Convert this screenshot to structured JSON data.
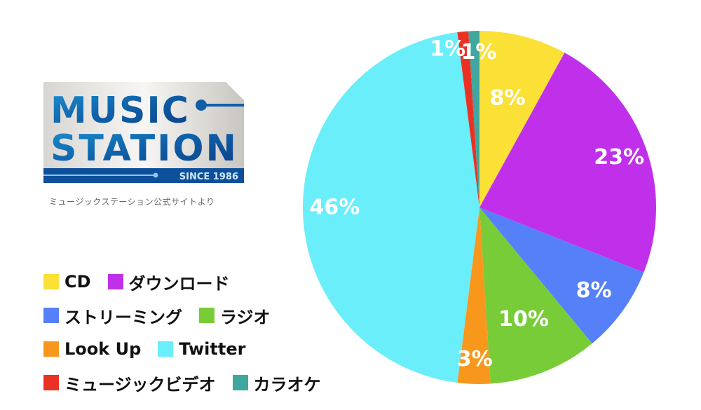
{
  "logo": {
    "line1": "MUSIC",
    "line2": "STATION",
    "since": "SINCE 1986",
    "caption": "ミュージックステーション公式サイトより"
  },
  "chart_data": {
    "type": "pie",
    "start": "top",
    "direction": "clockwise",
    "categories": [
      "CD",
      "ダウンロード",
      "ストリーミング",
      "ラジオ",
      "Look Up",
      "Twitter",
      "ミュージックビデオ",
      "カラオケ"
    ],
    "values": [
      8,
      23,
      8,
      10,
      3,
      46,
      1,
      1
    ],
    "labels": [
      "8%",
      "23%",
      "8%",
      "10%",
      "3%",
      "46%",
      "1%",
      "1%"
    ],
    "colors": [
      "#fbe036",
      "#c030ea",
      "#5680f8",
      "#78cc38",
      "#f7981c",
      "#6aeefa",
      "#ea3224",
      "#3fa6a0"
    ],
    "legend_position": "left"
  }
}
